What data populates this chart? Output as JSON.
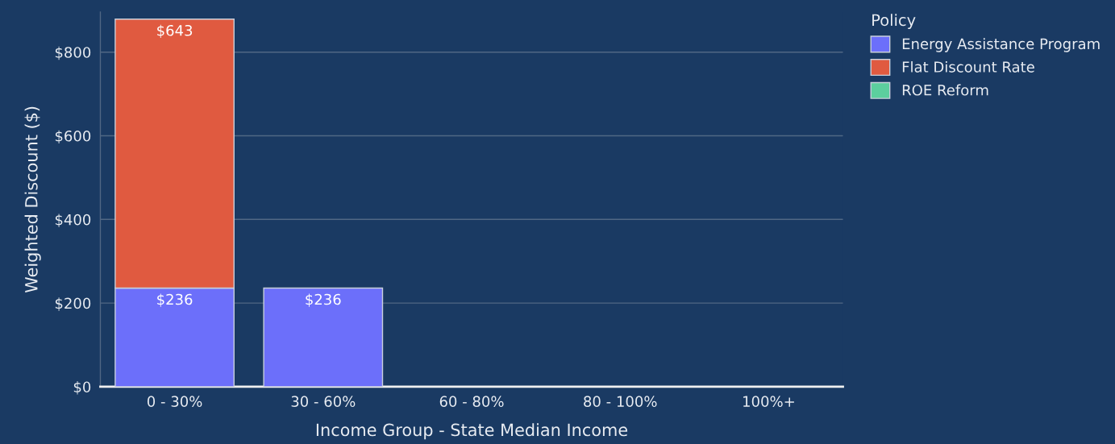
{
  "chart_data": {
    "type": "bar",
    "stacked": true,
    "xlabel": "Income Group - State Median Income",
    "ylabel": "Weighted Discount ($)",
    "legend_title": "Policy",
    "legend": "top right",
    "categories": [
      "0 - 30%",
      "30 - 60%",
      "60 - 80%",
      "80 - 100%",
      "100%+"
    ],
    "series": [
      {
        "name": "Energy Assistance Program",
        "color": "#6c6ffa",
        "values": [
          236,
          236,
          null,
          null,
          null
        ],
        "value_labels": [
          "$236",
          "$236",
          null,
          null,
          null
        ]
      },
      {
        "name": "Flat Discount Rate",
        "color": "#e05a40",
        "values": [
          643,
          null,
          null,
          null,
          null
        ],
        "value_labels": [
          "$643",
          null,
          null,
          null,
          null
        ]
      },
      {
        "name": "ROE Reform",
        "color": "#5ccf9e",
        "values": [
          null,
          null,
          null,
          null,
          null
        ]
      }
    ],
    "ylim": [
      0,
      896
    ],
    "yticks": [
      {
        "value": 0,
        "label": "$0"
      },
      {
        "value": 200,
        "label": "$200"
      },
      {
        "value": 400,
        "label": "$400"
      },
      {
        "value": 600,
        "label": "$600"
      },
      {
        "value": 800,
        "label": "$800"
      }
    ],
    "grid": "y"
  }
}
